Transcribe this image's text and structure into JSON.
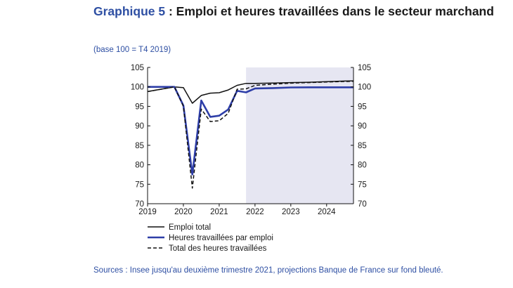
{
  "header": {
    "title_prefix": "Graphique 5",
    "title_rest": " : Emploi et heures travaillées dans le secteur marchand",
    "subtitle": "(base 100 = T4 2019)"
  },
  "footer": {
    "source": "Sources : Insee jusqu'au deuxième trimestre 2021, projections Banque de France sur fond bleuté."
  },
  "chart_data": {
    "type": "line",
    "title": "",
    "xlabel": "",
    "ylabel": "",
    "ylim": [
      70,
      105
    ],
    "y_ticks": [
      70,
      75,
      80,
      85,
      90,
      95,
      100,
      105
    ],
    "y_ticks_right": true,
    "x_range": [
      2019,
      2024.75
    ],
    "x_ticks": [
      2019,
      2020,
      2021,
      2022,
      2023,
      2024
    ],
    "x_tick_labels": [
      "2019",
      "2020",
      "2021",
      "2022",
      "2023",
      "2024"
    ],
    "grid": false,
    "legend": "bottom",
    "projection_shading": {
      "from": 2021.75,
      "to": 2024.75,
      "color": "#e6e6f2"
    },
    "series": [
      {
        "name": "Emploi total",
        "color": "#111111",
        "style": "solid",
        "x": [
          2019.0,
          2019.25,
          2019.5,
          2019.75,
          2020.0,
          2020.25,
          2020.5,
          2020.75,
          2021.0,
          2021.25,
          2021.5,
          2021.75,
          2022.0,
          2022.5,
          2023.0,
          2023.5,
          2024.0,
          2024.5,
          2024.75
        ],
        "values": [
          98.8,
          99.2,
          99.6,
          100.0,
          99.8,
          95.8,
          97.8,
          98.4,
          98.5,
          99.2,
          100.4,
          100.9,
          100.9,
          101.0,
          101.1,
          101.2,
          101.35,
          101.5,
          101.55
        ]
      },
      {
        "name": "Heures travaillées par emploi",
        "color": "#2e3ea8",
        "style": "solid",
        "x": [
          2019.0,
          2019.25,
          2019.5,
          2019.75,
          2020.0,
          2020.25,
          2020.5,
          2020.75,
          2021.0,
          2021.25,
          2021.5,
          2021.75,
          2022.0,
          2022.5,
          2023.0,
          2023.5,
          2024.0,
          2024.5,
          2024.75
        ],
        "values": [
          100.0,
          100.0,
          100.0,
          100.0,
          95.2,
          77.5,
          96.5,
          92.3,
          92.6,
          94.2,
          99.0,
          98.6,
          99.6,
          99.7,
          99.85,
          99.9,
          99.9,
          99.9,
          99.9
        ]
      },
      {
        "name": "Total des heures travaillées",
        "color": "#111111",
        "style": "dashed",
        "x": [
          2019.0,
          2019.25,
          2019.5,
          2019.75,
          2020.0,
          2020.25,
          2020.5,
          2020.75,
          2021.0,
          2021.25,
          2021.5,
          2021.75,
          2022.0,
          2022.5,
          2023.0,
          2023.5,
          2024.0,
          2024.5,
          2024.75
        ],
        "values": [
          98.8,
          99.2,
          99.6,
          100.0,
          95.0,
          74.0,
          94.3,
          91.1,
          91.3,
          93.2,
          99.4,
          99.5,
          100.4,
          100.7,
          100.95,
          101.1,
          101.25,
          101.4,
          101.45
        ]
      }
    ]
  }
}
